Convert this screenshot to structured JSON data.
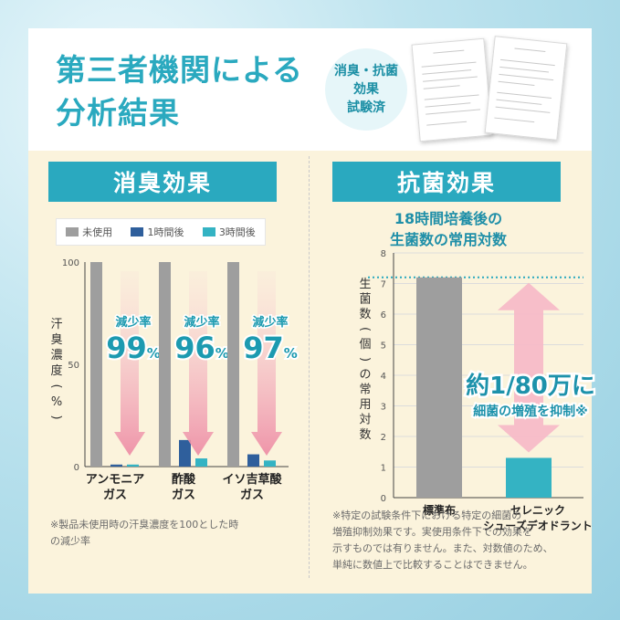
{
  "header": {
    "title_line1": "第三者機関による",
    "title_line2": "分析結果",
    "badge": [
      "消臭・抗菌",
      "効果",
      "試験済"
    ]
  },
  "left": {
    "banner": "消臭効果",
    "legend": [
      "未使用",
      "1時間後",
      "3時間後"
    ],
    "ylabel": "汗臭濃度(%)",
    "note": [
      "※製品未使用時の汗臭濃度を100とした時",
      "の減少率"
    ],
    "reduction_label": "減少率"
  },
  "right": {
    "banner": "抗菌効果",
    "subtitle": [
      "18時間培養後の",
      "生菌数の常用対数"
    ],
    "ylabel": "生菌数(個)の常用対数",
    "callout_line1": "約1/80万に",
    "callout_line2": "細菌の増殖を抑制※",
    "note": [
      "※特定の試験条件下における特定の細菌の",
      "増殖抑制効果です。実使用条件下での効果を",
      "示すものでは有りません。また、対数値のため、",
      "単純に数値上で比較することはできません。"
    ]
  },
  "chart_data": [
    {
      "type": "bar",
      "title": "消臭効果",
      "ylabel": "汗臭濃度(%)",
      "ylim": [
        0,
        100
      ],
      "yticks": [
        0,
        50,
        100
      ],
      "categories": [
        "アンモニア\nガス",
        "酢酸\nガス",
        "イソ吉草酸\nガス"
      ],
      "series": [
        {
          "name": "未使用",
          "color": "#9e9e9e",
          "values": [
            100,
            100,
            100
          ]
        },
        {
          "name": "1時間後",
          "color": "#2f5f9c",
          "values": [
            1,
            13,
            6
          ]
        },
        {
          "name": "3時間後",
          "color": "#34b3c3",
          "values": [
            1,
            4,
            3
          ]
        }
      ],
      "annotations": [
        {
          "label": "減少率",
          "value": "99%"
        },
        {
          "label": "減少率",
          "value": "96%"
        },
        {
          "label": "減少率",
          "value": "97%"
        }
      ],
      "legend": "top"
    },
    {
      "type": "bar",
      "title": "18時間培養後の生菌数の常用対数",
      "ylabel": "生菌数(個)の常用対数",
      "ylim": [
        0,
        8
      ],
      "yticks": [
        0,
        1,
        2,
        3,
        4,
        5,
        6,
        7,
        8
      ],
      "categories": [
        "標準布",
        "セレニック\nシューズデオドラント"
      ],
      "values": [
        7.2,
        1.3
      ],
      "colors": [
        "#9e9e9e",
        "#34b3c3"
      ],
      "reference_line": 7.2,
      "annotation": "約1/80万に 細菌の増殖を抑制※"
    }
  ]
}
